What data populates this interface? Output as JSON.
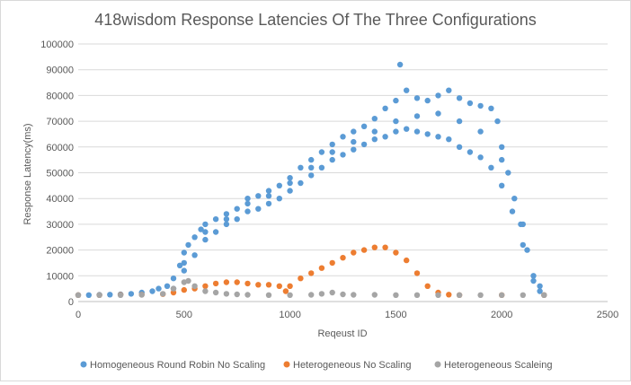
{
  "chart_data": {
    "type": "scatter",
    "title": "418wisdom Response Latencies Of The Three Configurations",
    "xlabel": "Reqeust ID",
    "ylabel": "Response Latency(ms)",
    "xlim": [
      0,
      2500
    ],
    "ylim": [
      0,
      100000
    ],
    "xticks": [
      0,
      500,
      1000,
      1500,
      2000,
      2500
    ],
    "yticks": [
      0,
      10000,
      20000,
      30000,
      40000,
      50000,
      60000,
      70000,
      80000,
      90000,
      100000
    ],
    "grid": "horizontal",
    "legend_position": "bottom",
    "series": [
      {
        "name": "Homogeneous Round Robin No Scaling",
        "color": "#5B9BD5",
        "points": [
          [
            0,
            2500
          ],
          [
            50,
            2500
          ],
          [
            100,
            2600
          ],
          [
            150,
            2700
          ],
          [
            200,
            2800
          ],
          [
            250,
            3000
          ],
          [
            300,
            3500
          ],
          [
            350,
            4000
          ],
          [
            380,
            5000
          ],
          [
            420,
            6000
          ],
          [
            450,
            9000
          ],
          [
            480,
            14000
          ],
          [
            500,
            19000
          ],
          [
            520,
            22000
          ],
          [
            550,
            25000
          ],
          [
            580,
            28000
          ],
          [
            600,
            30000
          ],
          [
            650,
            32000
          ],
          [
            700,
            34000
          ],
          [
            750,
            36000
          ],
          [
            800,
            40000
          ],
          [
            850,
            41000
          ],
          [
            900,
            43000
          ],
          [
            950,
            45000
          ],
          [
            1000,
            48000
          ],
          [
            1050,
            52000
          ],
          [
            1100,
            55000
          ],
          [
            1150,
            58000
          ],
          [
            1200,
            61000
          ],
          [
            1250,
            64000
          ],
          [
            1300,
            66000
          ],
          [
            1350,
            68000
          ],
          [
            1400,
            71000
          ],
          [
            1450,
            75000
          ],
          [
            1500,
            78000
          ],
          [
            1520,
            92000
          ],
          [
            1550,
            82000
          ],
          [
            1600,
            79000
          ],
          [
            1650,
            78000
          ],
          [
            1700,
            80000
          ],
          [
            1750,
            82000
          ],
          [
            1800,
            79000
          ],
          [
            1850,
            77000
          ],
          [
            1900,
            76000
          ],
          [
            1950,
            75000
          ],
          [
            1980,
            70000
          ],
          [
            2000,
            60000
          ],
          [
            2030,
            50000
          ],
          [
            2060,
            40000
          ],
          [
            2090,
            30000
          ],
          [
            2120,
            20000
          ],
          [
            2150,
            10000
          ],
          [
            2180,
            4000
          ],
          [
            2200,
            2500
          ],
          [
            450,
            5000
          ],
          [
            500,
            12000
          ],
          [
            550,
            18000
          ],
          [
            600,
            24000
          ],
          [
            650,
            27000
          ],
          [
            700,
            30000
          ],
          [
            750,
            32000
          ],
          [
            800,
            35000
          ],
          [
            850,
            36000
          ],
          [
            900,
            38000
          ],
          [
            950,
            40000
          ],
          [
            1000,
            43000
          ],
          [
            1050,
            46000
          ],
          [
            1100,
            49000
          ],
          [
            1150,
            52000
          ],
          [
            1200,
            55000
          ],
          [
            1250,
            57000
          ],
          [
            1300,
            59000
          ],
          [
            1350,
            61000
          ],
          [
            1400,
            63000
          ],
          [
            1450,
            64000
          ],
          [
            1500,
            66000
          ],
          [
            1550,
            67000
          ],
          [
            1600,
            66000
          ],
          [
            1650,
            65000
          ],
          [
            1700,
            64000
          ],
          [
            1750,
            63000
          ],
          [
            1800,
            60000
          ],
          [
            1850,
            58000
          ],
          [
            1900,
            56000
          ],
          [
            1950,
            52000
          ],
          [
            2000,
            45000
          ],
          [
            2050,
            35000
          ],
          [
            2100,
            22000
          ],
          [
            2150,
            8000
          ],
          [
            500,
            15000
          ],
          [
            600,
            27000
          ],
          [
            700,
            32000
          ],
          [
            800,
            38000
          ],
          [
            900,
            41000
          ],
          [
            1000,
            46000
          ],
          [
            1100,
            52000
          ],
          [
            1200,
            58000
          ],
          [
            1300,
            62000
          ],
          [
            1400,
            66000
          ],
          [
            1500,
            70000
          ],
          [
            1600,
            72000
          ],
          [
            1700,
            73000
          ],
          [
            1800,
            70000
          ],
          [
            1900,
            66000
          ],
          [
            2000,
            55000
          ],
          [
            2100,
            30000
          ],
          [
            2180,
            6000
          ]
        ]
      },
      {
        "name": "Heterogeneous No Scaling",
        "color": "#ED7D31",
        "points": [
          [
            0,
            2500
          ],
          [
            100,
            2500
          ],
          [
            200,
            2600
          ],
          [
            300,
            2700
          ],
          [
            400,
            2900
          ],
          [
            450,
            3500
          ],
          [
            500,
            4500
          ],
          [
            550,
            5000
          ],
          [
            600,
            6000
          ],
          [
            650,
            7000
          ],
          [
            700,
            7500
          ],
          [
            750,
            7500
          ],
          [
            800,
            7000
          ],
          [
            850,
            6500
          ],
          [
            900,
            6500
          ],
          [
            950,
            6000
          ],
          [
            980,
            4000
          ],
          [
            1000,
            6000
          ],
          [
            1050,
            9000
          ],
          [
            1100,
            11000
          ],
          [
            1150,
            13000
          ],
          [
            1200,
            15000
          ],
          [
            1250,
            17000
          ],
          [
            1300,
            19000
          ],
          [
            1350,
            20000
          ],
          [
            1400,
            21000
          ],
          [
            1450,
            21000
          ],
          [
            1500,
            19000
          ],
          [
            1550,
            16000
          ],
          [
            1600,
            11000
          ],
          [
            1650,
            6000
          ],
          [
            1700,
            3500
          ],
          [
            1750,
            2700
          ],
          [
            1800,
            2500
          ],
          [
            2000,
            2500
          ],
          [
            2200,
            2500
          ]
        ]
      },
      {
        "name": "Heterogeneous Scaleing",
        "color": "#A5A5A5",
        "points": [
          [
            0,
            2500
          ],
          [
            100,
            2500
          ],
          [
            200,
            2500
          ],
          [
            300,
            2600
          ],
          [
            400,
            3000
          ],
          [
            450,
            5000
          ],
          [
            500,
            7500
          ],
          [
            520,
            8000
          ],
          [
            550,
            6000
          ],
          [
            600,
            4000
          ],
          [
            650,
            3500
          ],
          [
            700,
            3000
          ],
          [
            750,
            2800
          ],
          [
            800,
            2600
          ],
          [
            900,
            2500
          ],
          [
            1000,
            2500
          ],
          [
            1100,
            2600
          ],
          [
            1150,
            3000
          ],
          [
            1200,
            3500
          ],
          [
            1250,
            2800
          ],
          [
            1300,
            2600
          ],
          [
            1400,
            2600
          ],
          [
            1500,
            2500
          ],
          [
            1600,
            2500
          ],
          [
            1700,
            2500
          ],
          [
            1800,
            2500
          ],
          [
            1900,
            2500
          ],
          [
            2000,
            2500
          ],
          [
            2100,
            2500
          ],
          [
            2200,
            2500
          ]
        ]
      }
    ]
  }
}
